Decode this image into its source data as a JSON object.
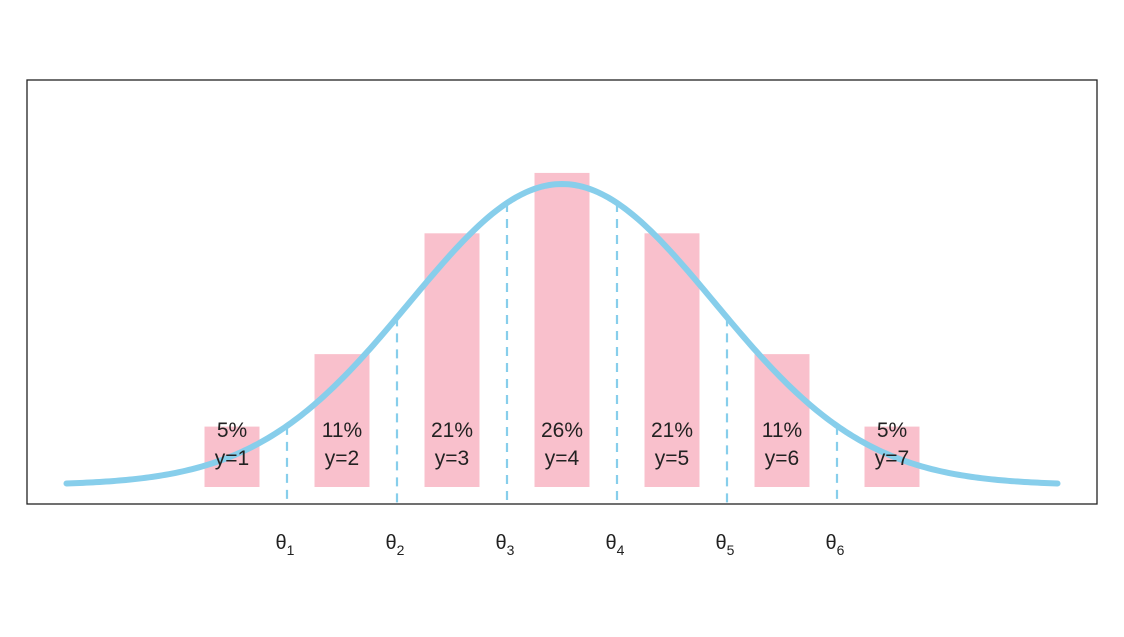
{
  "chart_data": {
    "type": "bar",
    "categories": [
      "y=1",
      "y=2",
      "y=3",
      "y=4",
      "y=5",
      "y=6",
      "y=7"
    ],
    "values": [
      5,
      11,
      21,
      26,
      21,
      11,
      5
    ],
    "value_labels": [
      "5%",
      "11%",
      "21%",
      "26%",
      "21%",
      "11%",
      "5%"
    ],
    "thresholds": [
      {
        "symbol": "θ",
        "sub": "1"
      },
      {
        "symbol": "θ",
        "sub": "2"
      },
      {
        "symbol": "θ",
        "sub": "3"
      },
      {
        "symbol": "θ",
        "sub": "4"
      },
      {
        "symbol": "θ",
        "sub": "5"
      },
      {
        "symbol": "θ",
        "sub": "6"
      }
    ],
    "curve": {
      "type": "normal-density",
      "mean": 0,
      "sd": 1,
      "xlim": [
        -3.25,
        3.25
      ]
    },
    "title": "",
    "xlabel": "",
    "ylabel": "",
    "grid": false,
    "colors": {
      "bars": "#f9c0cc",
      "curve": "#87ceeb",
      "threshold_lines": "#87ceeb",
      "frame": "#222222",
      "text": "#222222"
    }
  }
}
